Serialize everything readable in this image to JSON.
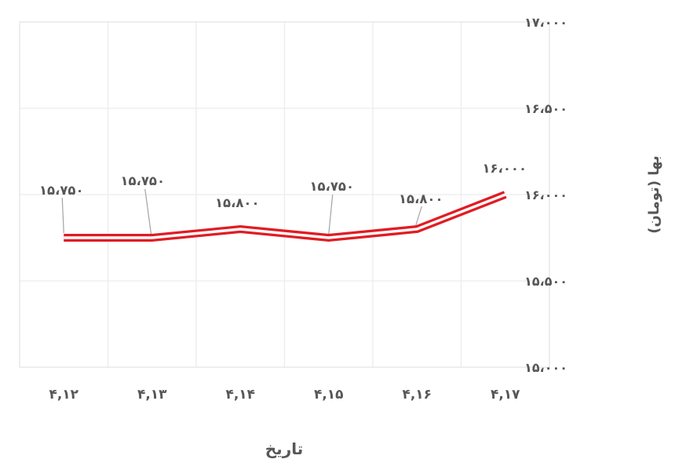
{
  "chart_data": {
    "type": "line",
    "xlabel": "تاریخ",
    "ylabel": "بها (تومان)",
    "categories": [
      "۴,۱۲",
      "۴,۱۳",
      "۴,۱۴",
      "۴,۱۵",
      "۴,۱۶",
      "۴,۱۷"
    ],
    "categories_values": [
      4.12,
      4.13,
      4.14,
      4.15,
      4.16,
      4.17
    ],
    "values": [
      15750,
      15750,
      15800,
      15750,
      15800,
      16000
    ],
    "data_labels": [
      "۱۵،۷۵۰",
      "۱۵،۷۵۰",
      "۱۵،۸۰۰",
      "۱۵،۷۵۰",
      "۱۵،۸۰۰",
      "۱۶،۰۰۰"
    ],
    "y_ticks": {
      "labels": [
        "۱۵،۰۰۰",
        "۱۵،۵۰۰",
        "۱۶،۰۰۰",
        "۱۶،۵۰۰",
        "۱۷،۰۰۰"
      ],
      "values": [
        15000,
        15500,
        16000,
        16500,
        17000
      ]
    },
    "ylim": [
      15000,
      17000
    ],
    "grid": true,
    "legend": false,
    "y_axis_side": "right",
    "direction": "rtl",
    "line_style": "double",
    "colors": {
      "line": "#e01c23",
      "line_inner": "#ffffff",
      "grid": "#ececec",
      "border": "#e4e4e4",
      "text": "#575757",
      "leader": "#a3a3a3",
      "background": "#ffffff"
    }
  }
}
